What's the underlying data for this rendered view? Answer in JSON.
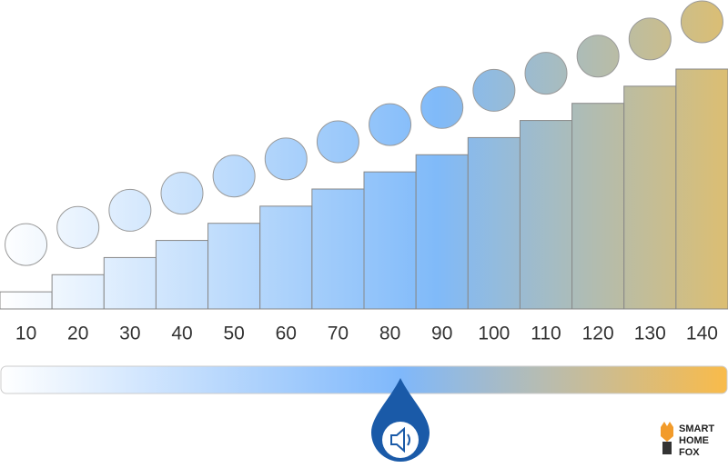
{
  "chart_data": {
    "type": "bar",
    "values": [
      10,
      20,
      30,
      40,
      50,
      60,
      70,
      80,
      90,
      100,
      110,
      120,
      130,
      140
    ],
    "ylim": [
      0,
      140
    ],
    "colors": [
      "#ffffff",
      "#80baf9",
      "#dcbe72"
    ],
    "logo": [
      "SMART",
      "HOME",
      "FOX"
    ]
  }
}
